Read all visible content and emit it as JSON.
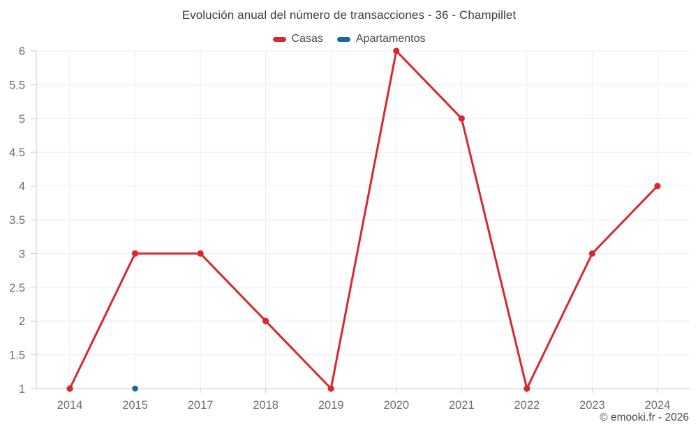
{
  "page": {
    "title": "Evolución anual del número de transacciones - 36 - Champillet"
  },
  "chart_data": {
    "type": "line",
    "title": "Evolución anual del número de transacciones - 36 - Champillet",
    "xlabel": "",
    "ylabel": "",
    "categories": [
      "2014",
      "2015",
      "2017",
      "2018",
      "2019",
      "2020",
      "2021",
      "2022",
      "2023",
      "2024"
    ],
    "series": [
      {
        "name": "Casas",
        "color": "#d7282e",
        "point_radius": 4.6,
        "line_width": 3,
        "values": [
          1,
          3,
          3,
          2,
          1,
          6,
          5,
          1,
          3,
          4
        ]
      },
      {
        "name": "Apartamentos",
        "color": "#1269a2",
        "point_radius": 4.3,
        "line_width": 3,
        "values": [
          null,
          1,
          null,
          null,
          null,
          null,
          null,
          null,
          null,
          null
        ]
      }
    ],
    "ylim": [
      1,
      6
    ],
    "ytick_step": 0.5,
    "ytick_labels": [
      "1",
      "1.5",
      "2",
      "2.5",
      "3",
      "3.5",
      "4",
      "4.5",
      "5",
      "5.5",
      "6"
    ],
    "grid": true,
    "legend_position": "top",
    "colors": {
      "grid_line": "#ececec",
      "axis_line": "#c9c9c9",
      "tick_label": "#6f6f6f"
    }
  },
  "footer": {
    "copyright": "© emooki.fr - 2026"
  }
}
